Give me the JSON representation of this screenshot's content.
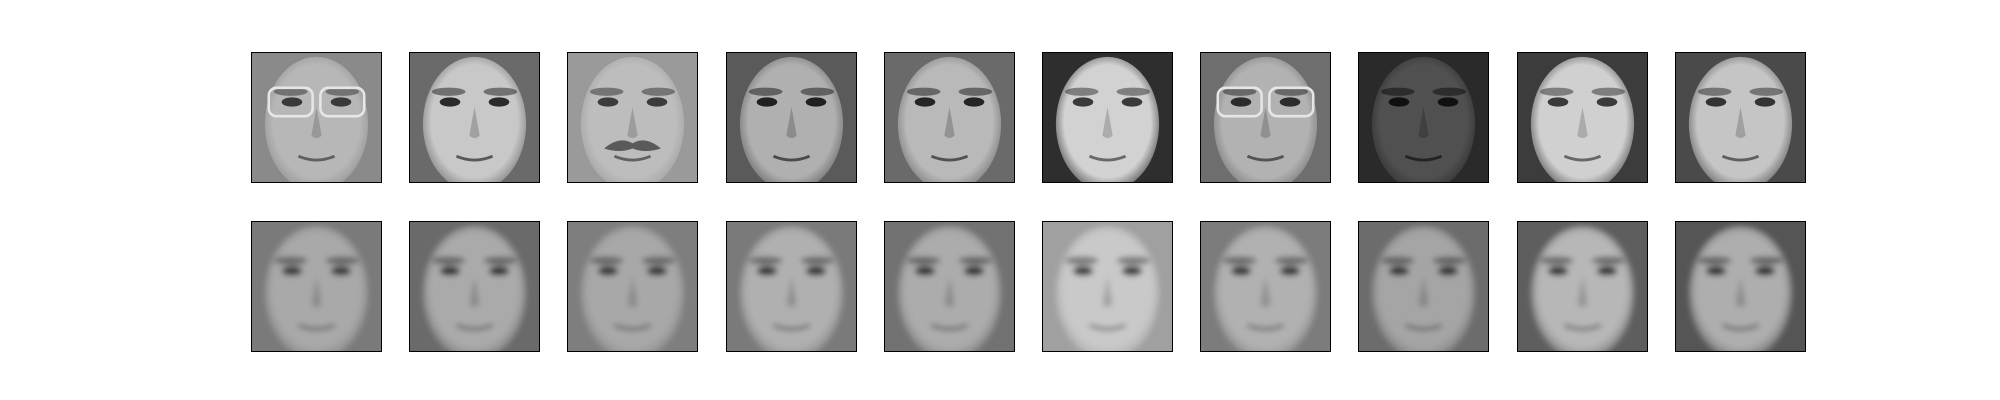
{
  "figure": {
    "rows": [
      {
        "tiles": [
          {
            "tone": "#8a8a8a",
            "face": "#b7b7b7",
            "dark": "#3a3a3a",
            "glasses": true,
            "mustache": false
          },
          {
            "tone": "#6a6a6a",
            "face": "#c8c8c8",
            "dark": "#2a2a2a",
            "glasses": false,
            "mustache": false
          },
          {
            "tone": "#9a9a9a",
            "face": "#bdbdbd",
            "dark": "#3b3b3b",
            "glasses": false,
            "mustache": true
          },
          {
            "tone": "#5a5a5a",
            "face": "#b0b0b0",
            "dark": "#202020",
            "glasses": false,
            "mustache": false
          },
          {
            "tone": "#6a6a6a",
            "face": "#b9b9b9",
            "dark": "#252525",
            "glasses": false,
            "mustache": false
          },
          {
            "tone": "#2e2e2e",
            "face": "#d2d2d2",
            "dark": "#3a3a3a",
            "glasses": false,
            "mustache": false
          },
          {
            "tone": "#6e6e6e",
            "face": "#b2b2b2",
            "dark": "#2c2c2c",
            "glasses": true,
            "mustache": false
          },
          {
            "tone": "#2a2a2a",
            "face": "#505050",
            "dark": "#101010",
            "glasses": false,
            "mustache": false
          },
          {
            "tone": "#3c3c3c",
            "face": "#d0d0d0",
            "dark": "#3a3a3a",
            "glasses": false,
            "mustache": false
          },
          {
            "tone": "#4a4a4a",
            "face": "#c5c5c5",
            "dark": "#333333",
            "glasses": false,
            "mustache": false
          }
        ]
      },
      {
        "tiles": [
          {
            "tone": "#7a7a7a",
            "face": "#a9a9a9",
            "dark": "#303030",
            "glasses": false,
            "mustache": false
          },
          {
            "tone": "#6a6a6a",
            "face": "#aaaaaa",
            "dark": "#2c2c2c",
            "glasses": false,
            "mustache": false
          },
          {
            "tone": "#7e7e7e",
            "face": "#a8a8a8",
            "dark": "#2e2e2e",
            "glasses": false,
            "mustache": false
          },
          {
            "tone": "#7a7a7a",
            "face": "#b0b0b0",
            "dark": "#2c2c2c",
            "glasses": false,
            "mustache": false
          },
          {
            "tone": "#727272",
            "face": "#acacac",
            "dark": "#2a2a2a",
            "glasses": false,
            "mustache": false
          },
          {
            "tone": "#a0a0a0",
            "face": "#c9c9c9",
            "dark": "#333333",
            "glasses": false,
            "mustache": false
          },
          {
            "tone": "#7c7c7c",
            "face": "#b1b1b1",
            "dark": "#2e2e2e",
            "glasses": false,
            "mustache": false
          },
          {
            "tone": "#6c6c6c",
            "face": "#a5a5a5",
            "dark": "#2a2a2a",
            "glasses": false,
            "mustache": false
          },
          {
            "tone": "#5e5e5e",
            "face": "#b7b7b7",
            "dark": "#2a2a2a",
            "glasses": false,
            "mustache": false
          },
          {
            "tone": "#555555",
            "face": "#aeaeae",
            "dark": "#262626",
            "glasses": false,
            "mustache": false
          }
        ]
      }
    ]
  }
}
